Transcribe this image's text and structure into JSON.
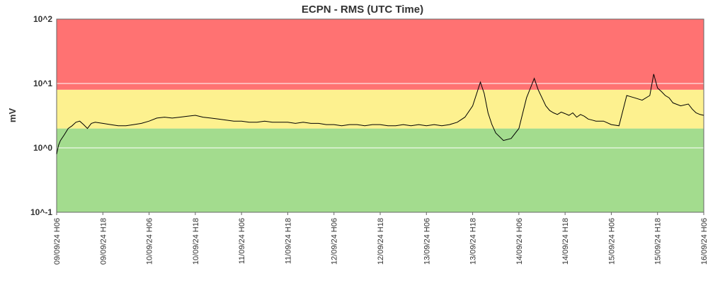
{
  "chart_data": {
    "type": "line",
    "title": "ECPN - RMS (UTC Time)",
    "ylabel": "mV",
    "yscale": "log",
    "ylim": [
      0.1,
      100
    ],
    "y_ticks": [
      {
        "value": 0.1,
        "label": "10^-1"
      },
      {
        "value": 1,
        "label": "10^0"
      },
      {
        "value": 10,
        "label": "10^1"
      },
      {
        "value": 100,
        "label": "10^2"
      }
    ],
    "x_ticks": [
      "09/09/24 H06",
      "09/09/24 H18",
      "10/09/24 H06",
      "10/09/24 H18",
      "11/09/24 H06",
      "11/09/24 H18",
      "12/09/24 H06",
      "12/09/24 H18",
      "13/09/24 H06",
      "13/09/24 H18",
      "14/09/24 H06",
      "14/09/24 H18",
      "15/09/24 H06",
      "15/09/24 H18",
      "16/09/24 H06"
    ],
    "x_unit": "hours from 09/09/24 H06",
    "xlim": [
      0,
      168
    ],
    "bands": [
      {
        "from": 0.1,
        "to": 2.0,
        "color": "#a3dc8e"
      },
      {
        "from": 2.0,
        "to": 8.0,
        "color": "#fdf18f"
      },
      {
        "from": 8.0,
        "to": 100,
        "color": "#ff7272"
      }
    ],
    "grid": true,
    "line_color": "#000000",
    "series": [
      {
        "x": [
          0,
          0.5,
          1,
          2,
          3,
          4,
          5,
          6,
          7,
          8,
          9,
          10,
          12,
          14,
          16,
          18,
          20,
          22,
          24,
          26,
          28,
          30,
          32,
          34,
          36,
          38,
          40,
          42,
          44,
          46,
          48,
          50,
          52,
          54,
          56,
          58,
          60,
          62,
          64,
          66,
          68,
          70,
          72,
          74,
          76,
          78,
          80,
          82,
          84,
          86,
          88,
          90,
          92,
          94,
          96,
          98,
          100,
          102,
          104,
          106,
          108,
          110,
          111,
          112,
          113,
          114,
          116,
          118,
          120,
          122,
          124,
          125,
          126,
          127,
          128,
          129,
          130,
          131,
          132,
          133,
          134,
          135,
          136,
          137,
          138,
          139,
          140,
          142,
          144,
          146,
          148,
          150,
          152,
          154,
          155,
          156,
          157,
          158,
          159,
          160,
          162,
          164,
          165,
          166,
          167,
          168
        ],
        "y": [
          0.8,
          1.1,
          1.3,
          1.6,
          2.0,
          2.2,
          2.5,
          2.6,
          2.3,
          2.0,
          2.4,
          2.5,
          2.4,
          2.3,
          2.2,
          2.2,
          2.3,
          2.4,
          2.6,
          2.9,
          3.0,
          2.9,
          3.0,
          3.1,
          3.2,
          3.0,
          2.9,
          2.8,
          2.7,
          2.6,
          2.6,
          2.5,
          2.5,
          2.6,
          2.5,
          2.5,
          2.5,
          2.4,
          2.5,
          2.4,
          2.4,
          2.3,
          2.3,
          2.2,
          2.3,
          2.3,
          2.2,
          2.3,
          2.3,
          2.2,
          2.2,
          2.3,
          2.2,
          2.3,
          2.2,
          2.3,
          2.2,
          2.3,
          2.5,
          3.0,
          4.5,
          10.5,
          7.0,
          3.5,
          2.3,
          1.7,
          1.3,
          1.4,
          2.0,
          6.0,
          12.0,
          8.0,
          6.0,
          4.5,
          3.8,
          3.5,
          3.3,
          3.6,
          3.4,
          3.2,
          3.5,
          3.0,
          3.3,
          3.1,
          2.8,
          2.7,
          2.6,
          2.6,
          2.3,
          2.2,
          6.5,
          6.0,
          5.5,
          6.5,
          14.0,
          8.5,
          7.5,
          6.5,
          6.0,
          5.0,
          4.5,
          4.8,
          4.0,
          3.5,
          3.3,
          3.2
        ]
      }
    ]
  }
}
